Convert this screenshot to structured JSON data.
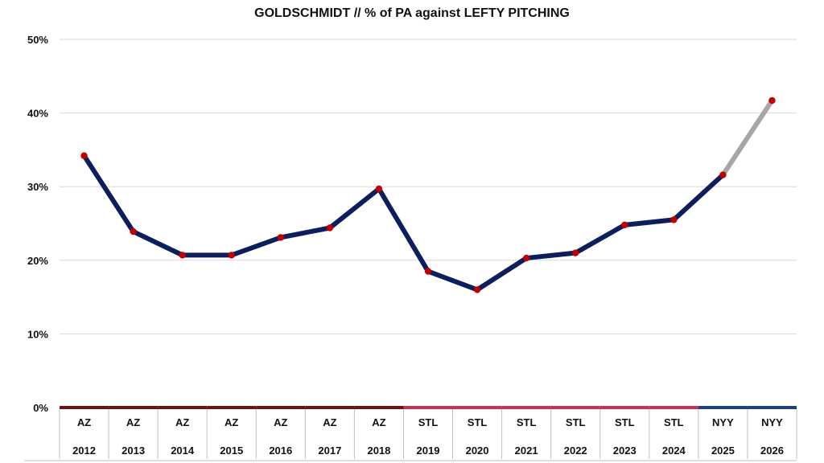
{
  "chart_data": {
    "type": "line",
    "title": "GOLDSCHMIDT // % of PA against LEFTY PITCHING",
    "xlabel": "",
    "ylabel": "",
    "ylim": [
      0,
      50
    ],
    "yticks": [
      "0%",
      "10%",
      "20%",
      "30%",
      "40%",
      "50%"
    ],
    "grid": true,
    "categories": [
      {
        "team": "AZ",
        "year": "2012"
      },
      {
        "team": "AZ",
        "year": "2013"
      },
      {
        "team": "AZ",
        "year": "2014"
      },
      {
        "team": "AZ",
        "year": "2015"
      },
      {
        "team": "AZ",
        "year": "2016"
      },
      {
        "team": "AZ",
        "year": "2017"
      },
      {
        "team": "AZ",
        "year": "2018"
      },
      {
        "team": "STL",
        "year": "2019"
      },
      {
        "team": "STL",
        "year": "2020"
      },
      {
        "team": "STL",
        "year": "2021"
      },
      {
        "team": "STL",
        "year": "2022"
      },
      {
        "team": "STL",
        "year": "2023"
      },
      {
        "team": "STL",
        "year": "2024"
      },
      {
        "team": "NYY",
        "year": "2025"
      },
      {
        "team": "NYY",
        "year": "2026"
      }
    ],
    "values": [
      34.2,
      23.9,
      20.7,
      20.7,
      23.1,
      24.4,
      29.7,
      18.5,
      16.0,
      20.3,
      21.0,
      24.8,
      25.5,
      31.6,
      41.7
    ],
    "projected_from_index": 13,
    "team_colors": {
      "AZ": "#6b1414",
      "STL": "#c8324e",
      "NYY": "#1c3f8a"
    },
    "colors": {
      "line": "#0c1f5c",
      "projected_line": "#a6a6a6",
      "marker": "#c00000",
      "grid": "#d9d9d9",
      "table_border": "#bfbfbf"
    }
  }
}
